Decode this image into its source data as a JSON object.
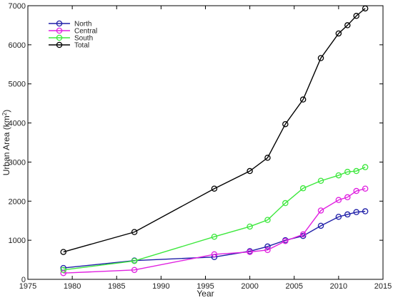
{
  "chart_data": {
    "type": "line",
    "title": "",
    "xlabel": "Year",
    "ylabel": {
      "prefix": "Urban Area (km",
      "sup": "2",
      "suffix": ")"
    },
    "xlim": [
      1975,
      2015
    ],
    "ylim": [
      0,
      7000
    ],
    "xticks": [
      1975,
      1980,
      1985,
      1990,
      1995,
      2000,
      2005,
      2010,
      2015
    ],
    "yticks": [
      0,
      1000,
      2000,
      3000,
      4000,
      5000,
      6000,
      7000
    ],
    "grid": false,
    "legend": "top-left",
    "x": [
      1979,
      1987,
      1996,
      2000,
      2002,
      2004,
      2006,
      2008,
      2010,
      2011,
      2012,
      2013
    ],
    "series": [
      {
        "name": "North",
        "color": "#1f1fa8",
        "values": [
          290,
          480,
          570,
          720,
          840,
          1000,
          1110,
          1370,
          1600,
          1660,
          1720,
          1740
        ]
      },
      {
        "name": "Central",
        "color": "#e020e0",
        "values": [
          160,
          240,
          640,
          700,
          750,
          980,
          1150,
          1760,
          2030,
          2100,
          2260,
          2320
        ]
      },
      {
        "name": "South",
        "color": "#3de83d",
        "values": [
          240,
          470,
          1090,
          1350,
          1520,
          1950,
          2330,
          2520,
          2660,
          2750,
          2770,
          2870
        ]
      },
      {
        "name": "Total",
        "color": "#000000",
        "values": [
          700,
          1210,
          2320,
          2770,
          3110,
          3970,
          4600,
          5660,
          6290,
          6500,
          6740,
          6930
        ]
      }
    ]
  }
}
